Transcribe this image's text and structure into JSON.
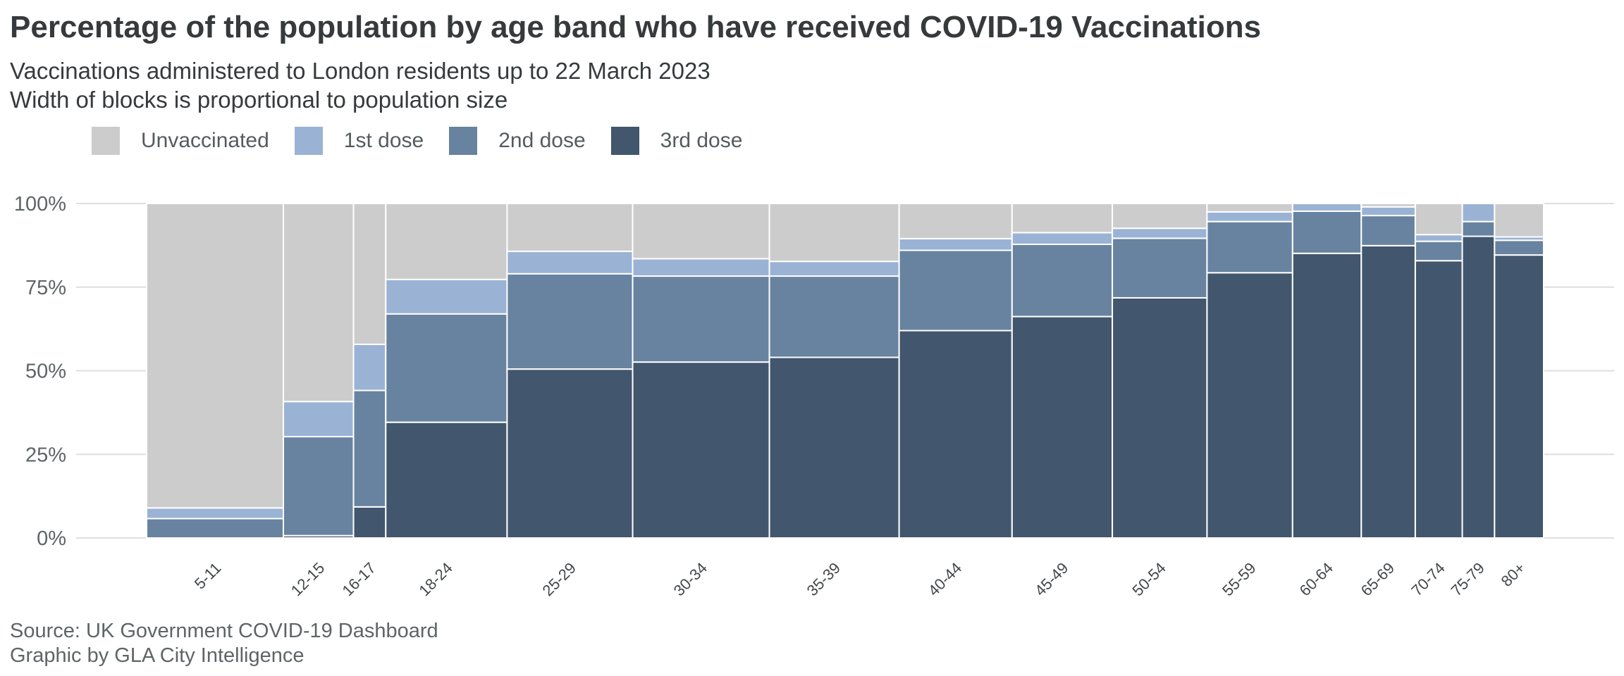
{
  "title": "Percentage of the population by age band who have received COVID-19 Vaccinations",
  "subtitle_lines": [
    "Vaccinations administered to London residents up to 22 March 2023",
    "Width of blocks is proportional to population size"
  ],
  "caption_lines": [
    "Source: UK Government COVID-19 Dashboard",
    "Graphic by GLA City Intelligence"
  ],
  "colors": {
    "Unvaccinated": "#cccccc",
    "1st dose": "#9ab3d5",
    "2nd dose": "#6883a0",
    "3rd dose": "#42566d",
    "background": "#ffffff",
    "gridline": "#dedede"
  },
  "chart_data": {
    "type": "bar",
    "variant": "stacked marimekko (variable-width stacked bars)",
    "legend_placement": "top-left",
    "grid": true,
    "ylim": [
      0,
      100
    ],
    "y_ticks": [
      "0%",
      "25%",
      "50%",
      "75%",
      "100%"
    ],
    "y_tick_values": [
      0,
      25,
      50,
      75,
      100
    ],
    "series_names": [
      "Unvaccinated",
      "1st dose",
      "2nd dose",
      "3rd dose"
    ],
    "categories": [
      "5-11",
      "12-15",
      "16-17",
      "18-24",
      "25-29",
      "30-34",
      "35-39",
      "40-44",
      "45-49",
      "50-54",
      "55-59",
      "60-64",
      "65-69",
      "70-74",
      "75-79",
      "80+"
    ],
    "relative_population": [
      195,
      100,
      46,
      173,
      179,
      195,
      185,
      161,
      143,
      135,
      122,
      98,
      77,
      67,
      46,
      70
    ],
    "series": [
      {
        "name": "3rd dose",
        "values": [
          0,
          0.7,
          9.3,
          34.6,
          50.5,
          52.6,
          54.0,
          62.0,
          66.2,
          71.8,
          79.3,
          85.1,
          87.4,
          82.9,
          90.2,
          84.6
        ]
      },
      {
        "name": "2nd dose",
        "values": [
          5.8,
          29.6,
          34.8,
          32.4,
          28.5,
          25.7,
          24.3,
          24.0,
          21.6,
          17.8,
          15.3,
          12.6,
          9.0,
          5.8,
          4.4,
          4.4
        ]
      },
      {
        "name": "1st dose",
        "values": [
          3.2,
          10.5,
          13.8,
          10.3,
          6.7,
          5.2,
          4.4,
          3.5,
          3.5,
          3.0,
          2.9,
          2.3,
          2.6,
          2.0,
          5.4,
          1.0
        ]
      },
      {
        "name": "Unvaccinated",
        "values": [
          91.0,
          59.2,
          42.1,
          22.7,
          14.3,
          16.5,
          17.3,
          10.5,
          8.7,
          7.4,
          2.5,
          0,
          1.0,
          9.3,
          0,
          10.0
        ]
      }
    ]
  }
}
